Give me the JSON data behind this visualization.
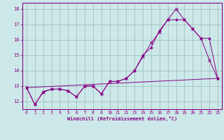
{
  "title": "",
  "xlabel": "Windchill (Refroidissement éolien,°C)",
  "xlim": [
    -0.5,
    23.5
  ],
  "ylim": [
    11.5,
    18.4
  ],
  "yticks": [
    12,
    13,
    14,
    15,
    16,
    17,
    18
  ],
  "xticks": [
    0,
    1,
    2,
    3,
    4,
    5,
    6,
    7,
    8,
    9,
    10,
    11,
    12,
    13,
    14,
    15,
    16,
    17,
    18,
    19,
    20,
    21,
    22,
    23
  ],
  "bg_color": "#cce8e8",
  "line_color": "#880088",
  "grid_color": "#99bbbb",
  "line1_x": [
    0,
    1,
    2,
    3,
    4,
    5,
    6,
    7,
    8,
    9,
    10,
    11,
    12,
    13,
    14,
    15,
    16,
    17,
    18,
    19,
    20,
    21,
    22,
    23
  ],
  "line1_y": [
    12.9,
    11.8,
    12.6,
    12.8,
    12.8,
    12.7,
    12.3,
    13.0,
    13.0,
    12.5,
    13.3,
    13.3,
    13.5,
    14.0,
    14.9,
    15.8,
    16.5,
    17.3,
    18.0,
    17.3,
    16.7,
    16.1,
    14.7,
    13.5
  ],
  "line2_x": [
    0,
    1,
    2,
    3,
    4,
    5,
    6,
    7,
    8,
    9,
    10,
    11,
    12,
    13,
    14,
    15,
    16,
    17,
    18,
    19,
    20,
    21,
    22,
    23
  ],
  "line2_y": [
    12.9,
    11.8,
    12.65,
    12.8,
    12.8,
    12.7,
    12.3,
    13.0,
    13.0,
    12.5,
    13.3,
    13.3,
    13.5,
    14.0,
    15.0,
    15.5,
    16.6,
    17.3,
    17.3,
    17.3,
    16.7,
    16.1,
    16.1,
    13.5
  ],
  "line3_x": [
    0,
    23
  ],
  "line3_y": [
    12.9,
    13.5
  ]
}
